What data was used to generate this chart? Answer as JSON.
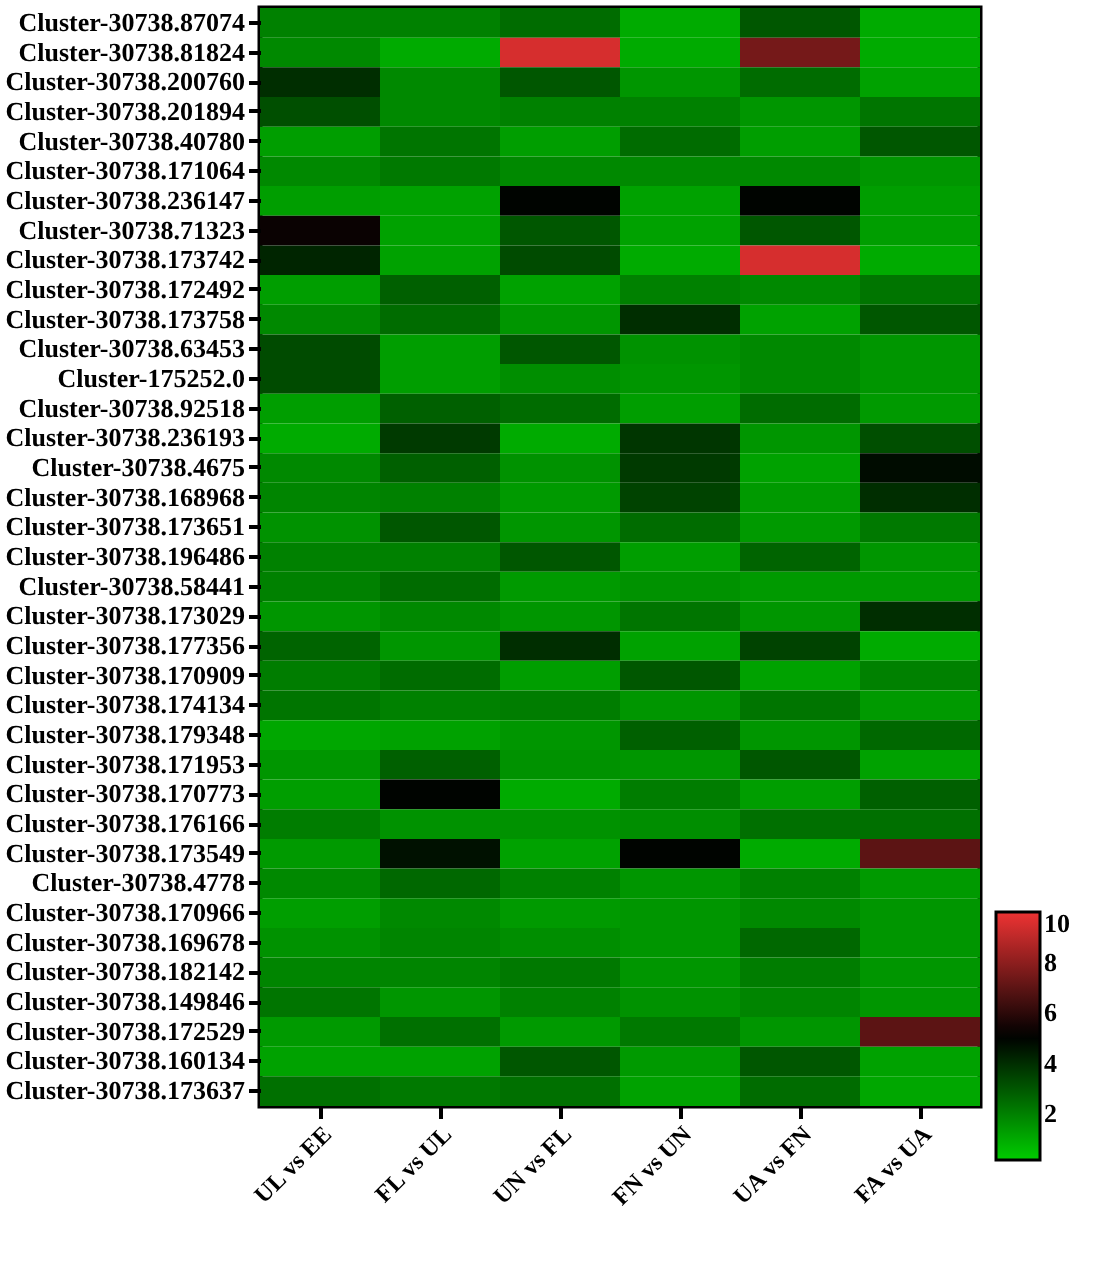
{
  "chart_data": {
    "type": "heatmap",
    "categories": [
      "UL vs EE",
      "FL vs UL",
      "UN vs FL",
      "FN vs UN",
      "UA vs FN",
      "FA vs UA"
    ],
    "y_categories": [
      "Cluster-30738.87074",
      "Cluster-30738.81824",
      "Cluster-30738.200760",
      "Cluster-30738.201894",
      "Cluster-30738.40780",
      "Cluster-30738.171064",
      "Cluster-30738.236147",
      "Cluster-30738.71323",
      "Cluster-30738.173742",
      "Cluster-30738.172492",
      "Cluster-30738.173758",
      "Cluster-30738.63453",
      "Cluster-175252.0",
      "Cluster-30738.92518",
      "Cluster-30738.236193",
      "Cluster-30738.4675",
      "Cluster-30738.168968",
      "Cluster-30738.173651",
      "Cluster-30738.196486",
      "Cluster-30738.58441",
      "Cluster-30738.173029",
      "Cluster-30738.177356",
      "Cluster-30738.170909",
      "Cluster-30738.174134",
      "Cluster-30738.179348",
      "Cluster-30738.171953",
      "Cluster-30738.170773",
      "Cluster-30738.176166",
      "Cluster-30738.173549",
      "Cluster-30738.4778",
      "Cluster-30738.170966",
      "Cluster-30738.169678",
      "Cluster-30738.182142",
      "Cluster-30738.149846",
      "Cluster-30738.172529",
      "Cluster-30738.160134",
      "Cluster-30738.173637"
    ],
    "cells": [
      [
        2,
        2,
        2.5,
        1,
        3,
        1
      ],
      [
        1.8,
        1,
        9.5,
        1,
        7.5,
        1
      ],
      [
        4,
        1.8,
        3,
        1.5,
        2.5,
        1.2
      ],
      [
        3.2,
        1.8,
        2,
        2,
        1.5,
        2.3
      ],
      [
        1.3,
        2.3,
        1.3,
        2.5,
        1.3,
        3
      ],
      [
        1.8,
        2.2,
        1.8,
        1.8,
        1.8,
        1.5
      ],
      [
        1.3,
        1.2,
        5,
        1.2,
        5,
        1.3
      ],
      [
        5.3,
        1.2,
        3,
        1.2,
        3,
        1.3
      ],
      [
        4.2,
        1.2,
        3.3,
        1,
        9.5,
        1
      ],
      [
        1.3,
        2.8,
        1.2,
        2,
        1.8,
        2.3
      ],
      [
        1.8,
        2.5,
        1.5,
        4,
        1.2,
        3
      ],
      [
        3.3,
        1.3,
        3,
        1.6,
        1.8,
        1.5
      ],
      [
        3.3,
        1.3,
        1.7,
        1.5,
        1.8,
        1.5
      ],
      [
        1.3,
        2.8,
        2.5,
        1.3,
        2.5,
        1.4
      ],
      [
        1,
        3.7,
        1,
        3.8,
        1.5,
        3.2
      ],
      [
        1.8,
        2.8,
        1.6,
        3.7,
        1.2,
        4.8
      ],
      [
        1.9,
        2,
        1.4,
        3.5,
        1.4,
        4
      ],
      [
        1.6,
        3,
        1.5,
        2.5,
        1.4,
        2.2
      ],
      [
        2,
        2,
        3,
        1.3,
        2.7,
        1.5
      ],
      [
        2,
        2.5,
        1.4,
        1.6,
        1.4,
        1.4
      ],
      [
        1.5,
        1.8,
        1.5,
        2.3,
        1.5,
        4
      ],
      [
        2.7,
        1.5,
        4,
        1.2,
        3.5,
        1
      ],
      [
        2.1,
        2.5,
        1.3,
        3,
        1.2,
        2
      ],
      [
        2.3,
        2,
        2.1,
        1.5,
        2.3,
        1.4
      ],
      [
        1.1,
        1.2,
        1.5,
        2.8,
        1.5,
        2.6
      ],
      [
        1.5,
        2.8,
        1.6,
        1.5,
        3,
        1.2
      ],
      [
        1.3,
        5,
        1,
        2.1,
        1.3,
        2.8
      ],
      [
        2.1,
        1.6,
        1.6,
        1.7,
        2.4,
        2.4
      ],
      [
        1.4,
        4.7,
        1.2,
        5,
        1,
        7
      ],
      [
        1.8,
        2.6,
        2,
        1.5,
        2,
        1.4
      ],
      [
        1.3,
        1.8,
        1.4,
        1.5,
        1.8,
        1.5
      ],
      [
        1.6,
        1.9,
        1.7,
        1.5,
        2.6,
        1.5
      ],
      [
        1.9,
        1.9,
        2.2,
        1.5,
        2.1,
        1.5
      ],
      [
        2.3,
        1.5,
        2,
        1.6,
        1.9,
        1.5
      ],
      [
        1.4,
        2.4,
        1.4,
        2.2,
        1.5,
        7
      ],
      [
        1.2,
        1.2,
        3,
        1.4,
        3,
        1.2
      ],
      [
        2.4,
        2.2,
        2.4,
        1.2,
        2.5,
        1.1
      ]
    ],
    "clim": [
      0.2,
      10
    ],
    "cticks": [
      2,
      4,
      6,
      8,
      10
    ]
  }
}
